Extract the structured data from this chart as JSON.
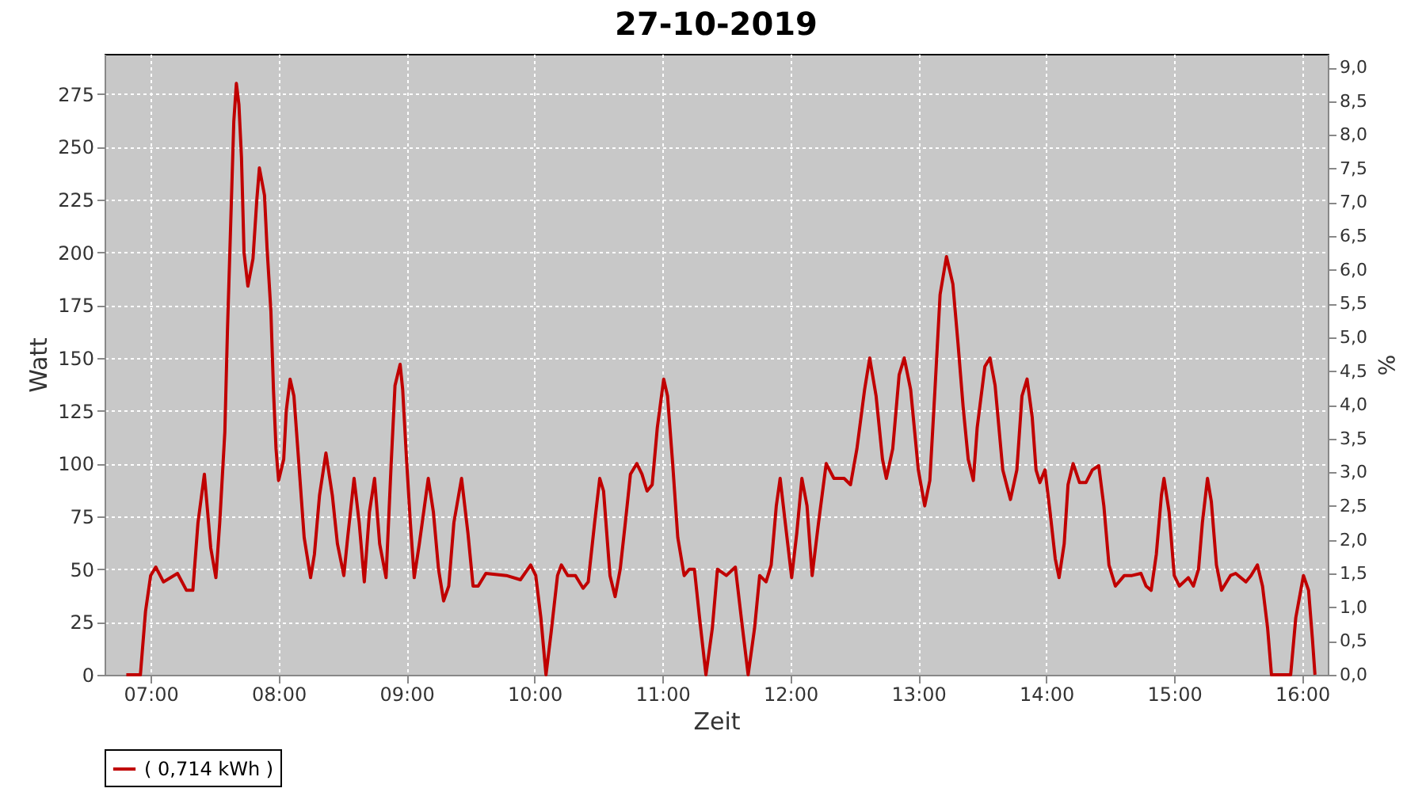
{
  "chart_data": {
    "type": "line",
    "title": "27-10-2019",
    "xlabel": "Zeit",
    "ylabel": "Watt",
    "y2label": "%",
    "xlim": [
      6.64,
      16.2
    ],
    "xticks": [
      {
        "value": 7,
        "label": "07:00"
      },
      {
        "value": 8,
        "label": "08:00"
      },
      {
        "value": 9,
        "label": "09:00"
      },
      {
        "value": 10,
        "label": "10:00"
      },
      {
        "value": 11,
        "label": "11:00"
      },
      {
        "value": 12,
        "label": "12:00"
      },
      {
        "value": 13,
        "label": "13:00"
      },
      {
        "value": 14,
        "label": "14:00"
      },
      {
        "value": 15,
        "label": "15:00"
      },
      {
        "value": 16,
        "label": "16:00"
      }
    ],
    "ylim": [
      0,
      294
    ],
    "yticks": [
      0,
      25,
      50,
      75,
      100,
      125,
      150,
      175,
      200,
      225,
      250,
      275
    ],
    "y2lim": [
      0,
      9.2
    ],
    "y2ticks": [
      {
        "value": 0,
        "label": "0,0"
      },
      {
        "value": 0.5,
        "label": "0,5"
      },
      {
        "value": 1,
        "label": "1,0"
      },
      {
        "value": 1.5,
        "label": "1,5"
      },
      {
        "value": 2,
        "label": "2,0"
      },
      {
        "value": 2.5,
        "label": "2,5"
      },
      {
        "value": 3,
        "label": "3,0"
      },
      {
        "value": 3.5,
        "label": "3,5"
      },
      {
        "value": 4,
        "label": "4,0"
      },
      {
        "value": 4.5,
        "label": "4,5"
      },
      {
        "value": 5,
        "label": "5,0"
      },
      {
        "value": 5.5,
        "label": "5,5"
      },
      {
        "value": 6,
        "label": "6,0"
      },
      {
        "value": 6.5,
        "label": "6,5"
      },
      {
        "value": 7,
        "label": "7,0"
      },
      {
        "value": 7.5,
        "label": "7,5"
      },
      {
        "value": 8,
        "label": "8,0"
      },
      {
        "value": 8.5,
        "label": "8,5"
      },
      {
        "value": 9,
        "label": "9,0"
      }
    ],
    "grid": true,
    "legend": "bottom",
    "marker": "none",
    "line_style": "solid",
    "series": [
      {
        "name": "( 0,714 kWh )",
        "color": "#c00000",
        "x": [
          6.81,
          6.92,
          6.96,
          7.0,
          7.04,
          7.1,
          7.21,
          7.28,
          7.33,
          7.37,
          7.42,
          7.47,
          7.51,
          7.54,
          7.58,
          7.6,
          7.63,
          7.65,
          7.67,
          7.69,
          7.71,
          7.73,
          7.76,
          7.8,
          7.83,
          7.85,
          7.89,
          7.91,
          7.94,
          7.96,
          7.98,
          8.0,
          8.04,
          8.06,
          8.09,
          8.12,
          8.15,
          8.2,
          8.25,
          8.28,
          8.32,
          8.37,
          8.42,
          8.46,
          8.51,
          8.54,
          8.59,
          8.63,
          8.67,
          8.71,
          8.75,
          8.79,
          8.84,
          8.88,
          8.91,
          8.95,
          8.97,
          9.0,
          9.03,
          9.06,
          9.1,
          9.17,
          9.21,
          9.25,
          9.29,
          9.33,
          9.37,
          9.43,
          9.48,
          9.52,
          9.56,
          9.62,
          9.78,
          9.89,
          9.97,
          10.01,
          10.05,
          10.09,
          10.13,
          10.18,
          10.21,
          10.26,
          10.32,
          10.38,
          10.42,
          10.47,
          10.51,
          10.54,
          10.59,
          10.63,
          10.67,
          10.71,
          10.75,
          10.8,
          10.84,
          10.88,
          10.92,
          10.96,
          11.01,
          11.04,
          11.08,
          11.12,
          11.17,
          11.21,
          11.25,
          11.29,
          11.34,
          11.39,
          11.43,
          11.5,
          11.57,
          11.62,
          11.67,
          11.72,
          11.76,
          11.81,
          11.85,
          11.89,
          11.92,
          11.96,
          12.01,
          12.05,
          12.09,
          12.13,
          12.17,
          12.22,
          12.28,
          12.34,
          12.42,
          12.47,
          12.52,
          12.58,
          12.62,
          12.67,
          12.72,
          12.75,
          12.8,
          12.85,
          12.89,
          12.94,
          13.0,
          13.05,
          13.09,
          13.13,
          13.17,
          13.22,
          13.27,
          13.31,
          13.35,
          13.39,
          13.43,
          13.46,
          13.52,
          13.56,
          13.6,
          13.66,
          13.72,
          13.77,
          13.81,
          13.85,
          13.89,
          13.92,
          13.95,
          13.99,
          14.03,
          14.07,
          14.1,
          14.14,
          14.17,
          14.21,
          14.26,
          14.31,
          14.36,
          14.41,
          14.45,
          14.49,
          14.54,
          14.61,
          14.67,
          14.74,
          14.78,
          14.82,
          14.86,
          14.9,
          14.92,
          14.96,
          15.0,
          15.04,
          15.11,
          15.15,
          15.19,
          15.22,
          15.26,
          15.29,
          15.33,
          15.37,
          15.44,
          15.48,
          15.56,
          15.6,
          15.65,
          15.69,
          15.73,
          15.76,
          15.85,
          15.91,
          15.95,
          16.01,
          16.05,
          16.08,
          16.1
        ],
        "values": [
          0,
          0,
          30,
          47,
          51,
          44,
          48,
          40,
          40,
          72,
          95,
          60,
          46,
          72,
          115,
          162,
          222,
          262,
          280,
          270,
          245,
          200,
          184,
          197,
          225,
          240,
          227,
          202,
          172,
          135,
          107,
          92,
          102,
          125,
          140,
          132,
          107,
          65,
          46,
          57,
          85,
          105,
          85,
          62,
          47,
          65,
          93,
          72,
          44,
          77,
          93,
          62,
          46,
          100,
          137,
          147,
          135,
          102,
          72,
          46,
          62,
          93,
          77,
          50,
          35,
          42,
          72,
          93,
          67,
          42,
          42,
          48,
          47,
          45,
          52,
          47,
          27,
          0,
          20,
          47,
          52,
          47,
          47,
          41,
          44,
          72,
          93,
          87,
          47,
          37,
          50,
          72,
          95,
          100,
          95,
          87,
          90,
          117,
          140,
          132,
          100,
          65,
          47,
          50,
          50,
          27,
          0,
          22,
          50,
          47,
          51,
          25,
          0,
          22,
          47,
          44,
          52,
          80,
          93,
          72,
          46,
          67,
          93,
          80,
          47,
          72,
          100,
          93,
          93,
          90,
          107,
          135,
          150,
          132,
          102,
          93,
          107,
          142,
          150,
          135,
          97,
          80,
          92,
          135,
          180,
          198,
          185,
          157,
          127,
          102,
          92,
          117,
          146,
          150,
          137,
          97,
          83,
          97,
          132,
          140,
          122,
          97,
          91,
          97,
          77,
          55,
          46,
          62,
          90,
          100,
          91,
          91,
          97,
          99,
          80,
          52,
          42,
          47,
          47,
          48,
          42,
          40,
          57,
          85,
          93,
          77,
          47,
          42,
          46,
          42,
          50,
          72,
          93,
          82,
          52,
          40,
          47,
          48,
          44,
          47,
          52,
          42,
          22,
          0,
          0,
          0,
          27,
          47,
          40,
          17,
          0
        ]
      }
    ]
  }
}
